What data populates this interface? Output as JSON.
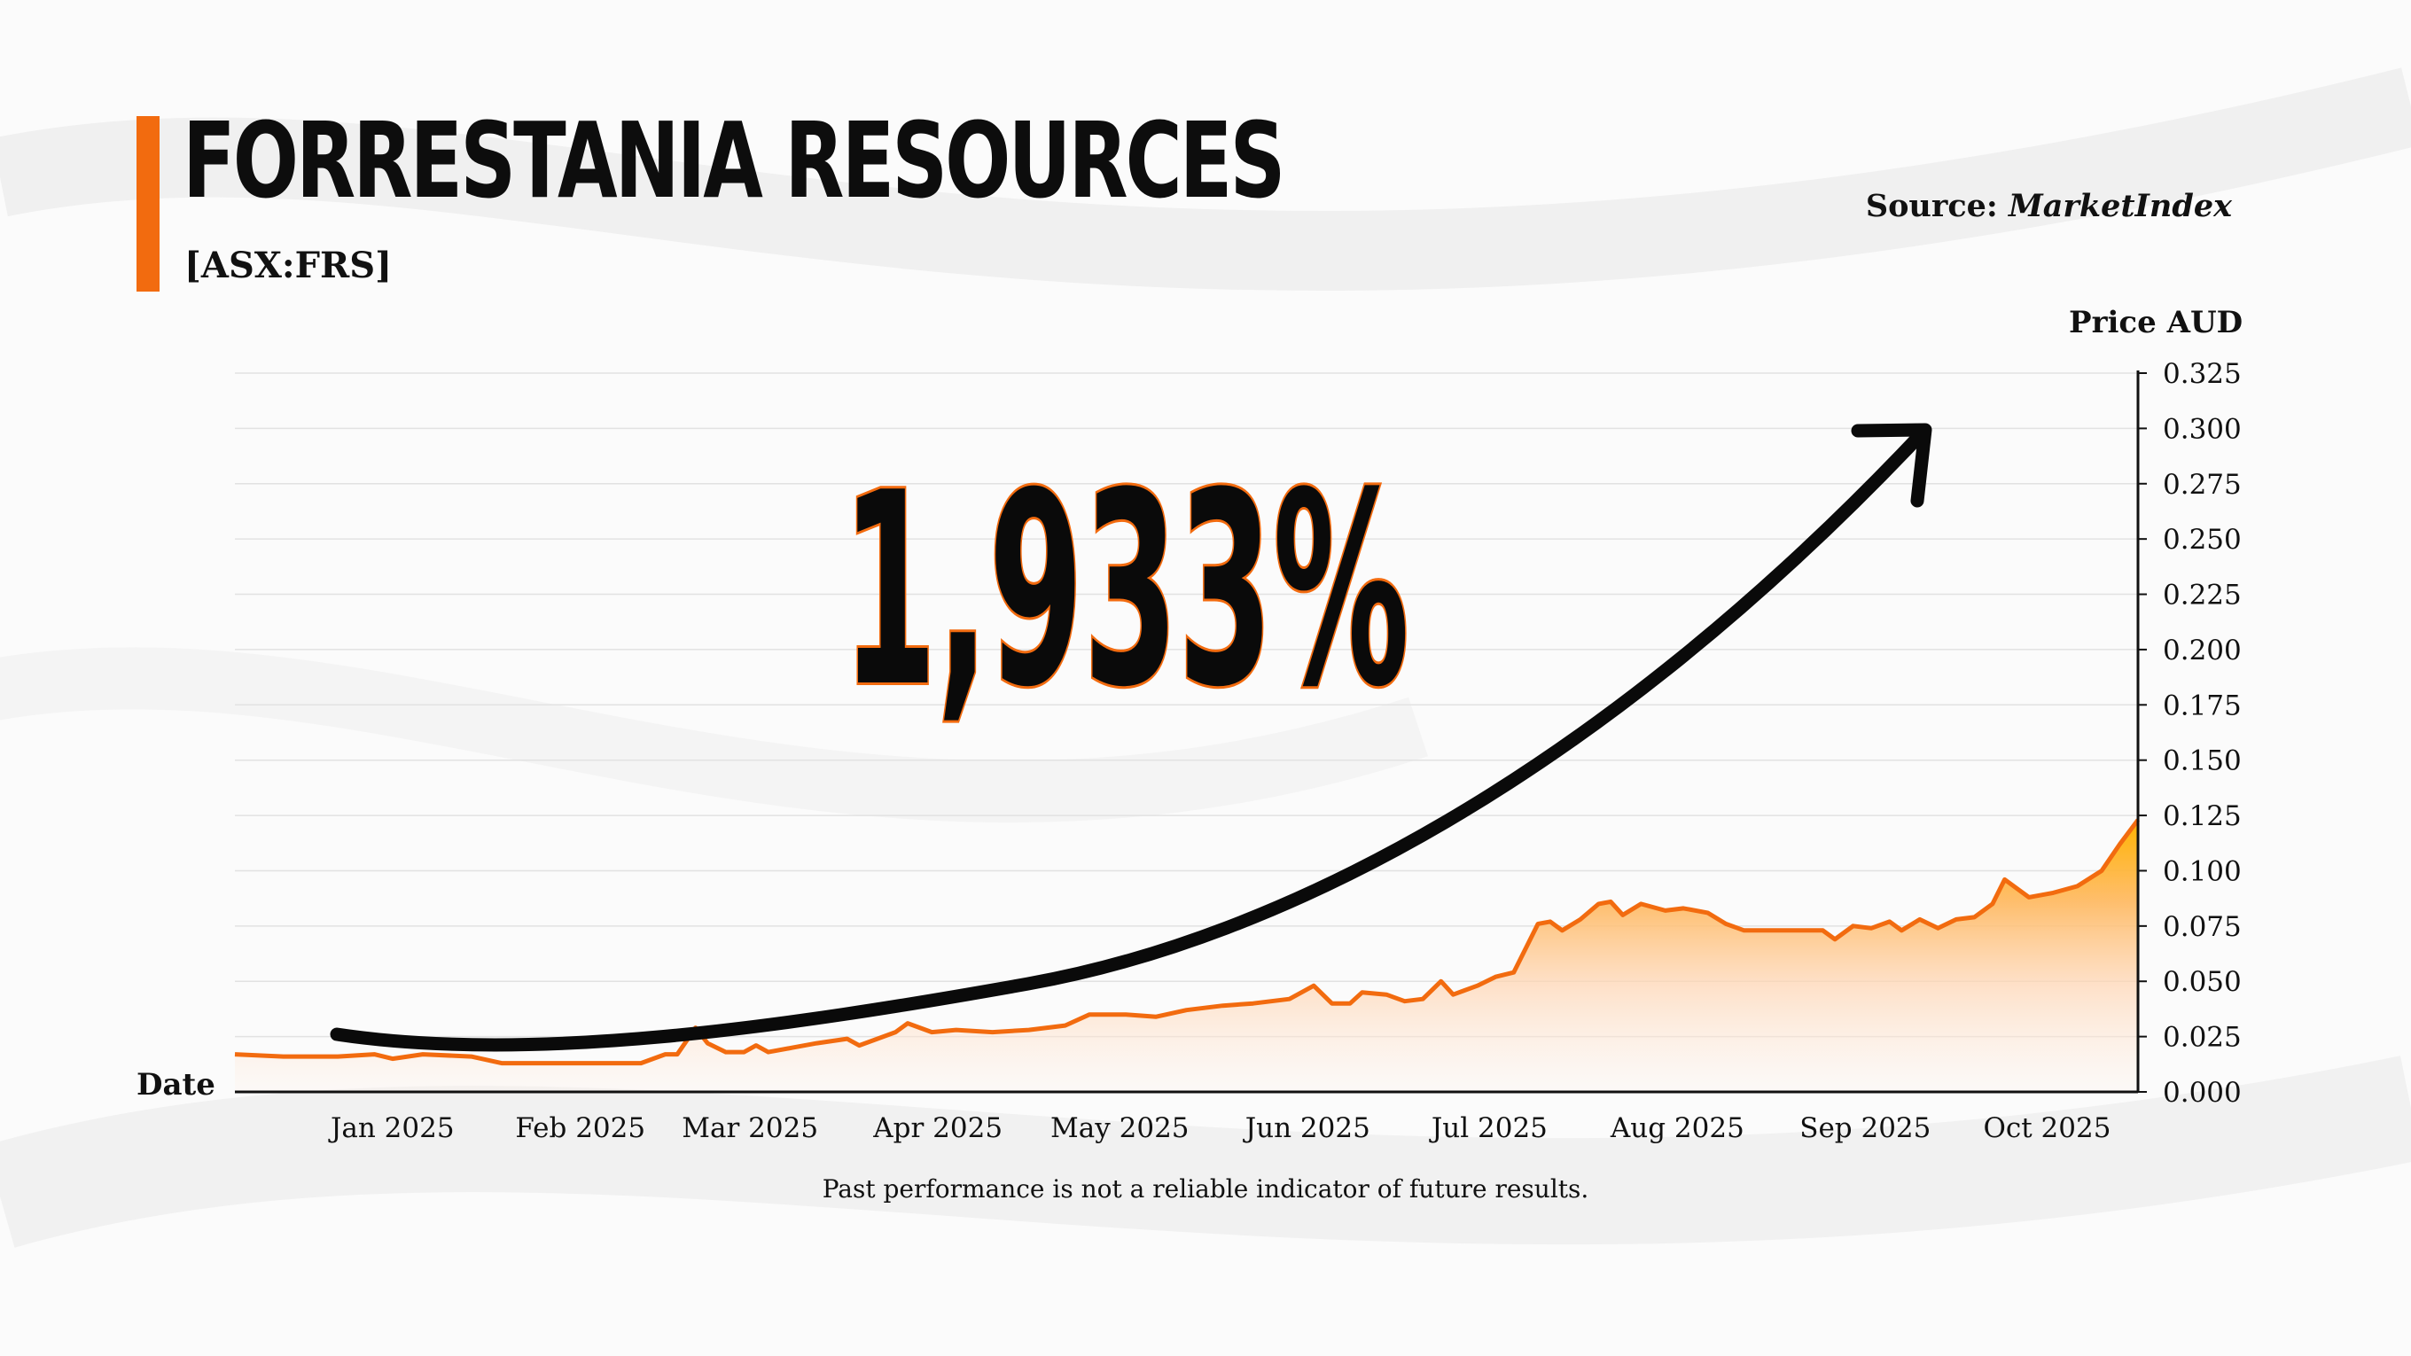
{
  "header": {
    "title": "FORRESTANIA RESOURCES",
    "ticker": "[ASX:FRS]",
    "source_prefix": "Source: ",
    "source_name": "MarketIndex"
  },
  "annotation": {
    "headline": "1,933%"
  },
  "footer": {
    "disclaimer": "Past performance is not a reliable indicator of future results."
  },
  "colors": {
    "accent": "#f26b0f",
    "fill_top": "#ffb300",
    "fill_bottom": "#ffe7d4",
    "arrow": "#0a0a0a"
  },
  "chart_data": {
    "type": "area",
    "title": "FORRESTANIA RESOURCES",
    "xlabel": "Date",
    "ylabel": "Price AUD",
    "ylim": [
      0,
      0.325
    ],
    "y_ticks": [
      "0.000",
      "0.025",
      "0.050",
      "0.075",
      "0.100",
      "0.125",
      "0.150",
      "0.175",
      "0.200",
      "0.225",
      "0.250",
      "0.275",
      "0.300",
      "0.325"
    ],
    "x_range": [
      "2024-12-20",
      "2025-10-30"
    ],
    "x_ticks": [
      {
        "label": "Jan 2025",
        "date": "2025-01-15"
      },
      {
        "label": "Feb 2025",
        "date": "2025-02-15"
      },
      {
        "label": "Mar 2025",
        "date": "2025-03-15"
      },
      {
        "label": "Apr 2025",
        "date": "2025-04-15"
      },
      {
        "label": "May 2025",
        "date": "2025-05-15"
      },
      {
        "label": "Jun 2025",
        "date": "2025-06-15"
      },
      {
        "label": "Jul 2025",
        "date": "2025-07-15"
      },
      {
        "label": "Aug 2025",
        "date": "2025-08-15"
      },
      {
        "label": "Sep 2025",
        "date": "2025-09-15"
      },
      {
        "label": "Oct 2025",
        "date": "2025-10-15"
      }
    ],
    "grid": true,
    "y_axis_side": "right",
    "series": [
      {
        "points": [
          [
            "2024-12-20",
            0.017
          ],
          [
            "2024-12-28",
            0.016
          ],
          [
            "2025-01-06",
            0.016
          ],
          [
            "2025-01-12",
            0.017
          ],
          [
            "2025-01-15",
            0.015
          ],
          [
            "2025-01-20",
            0.017
          ],
          [
            "2025-01-28",
            0.016
          ],
          [
            "2025-02-02",
            0.013
          ],
          [
            "2025-02-10",
            0.013
          ],
          [
            "2025-02-18",
            0.013
          ],
          [
            "2025-02-25",
            0.013
          ],
          [
            "2025-03-01",
            0.017
          ],
          [
            "2025-03-03",
            0.017
          ],
          [
            "2025-03-06",
            0.029
          ],
          [
            "2025-03-08",
            0.022
          ],
          [
            "2025-03-11",
            0.018
          ],
          [
            "2025-03-14",
            0.018
          ],
          [
            "2025-03-16",
            0.021
          ],
          [
            "2025-03-18",
            0.018
          ],
          [
            "2025-03-22",
            0.02
          ],
          [
            "2025-03-26",
            0.022
          ],
          [
            "2025-03-31",
            0.024
          ],
          [
            "2025-04-02",
            0.021
          ],
          [
            "2025-04-05",
            0.024
          ],
          [
            "2025-04-08",
            0.027
          ],
          [
            "2025-04-10",
            0.031
          ],
          [
            "2025-04-14",
            0.027
          ],
          [
            "2025-04-18",
            0.028
          ],
          [
            "2025-04-24",
            0.027
          ],
          [
            "2025-04-30",
            0.028
          ],
          [
            "2025-05-06",
            0.03
          ],
          [
            "2025-05-10",
            0.035
          ],
          [
            "2025-05-16",
            0.035
          ],
          [
            "2025-05-21",
            0.034
          ],
          [
            "2025-05-26",
            0.037
          ],
          [
            "2025-06-01",
            0.039
          ],
          [
            "2025-06-06",
            0.04
          ],
          [
            "2025-06-12",
            0.042
          ],
          [
            "2025-06-16",
            0.048
          ],
          [
            "2025-06-19",
            0.04
          ],
          [
            "2025-06-22",
            0.04
          ],
          [
            "2025-06-24",
            0.045
          ],
          [
            "2025-06-28",
            0.044
          ],
          [
            "2025-07-01",
            0.041
          ],
          [
            "2025-07-04",
            0.042
          ],
          [
            "2025-07-07",
            0.05
          ],
          [
            "2025-07-09",
            0.044
          ],
          [
            "2025-07-13",
            0.048
          ],
          [
            "2025-07-16",
            0.052
          ],
          [
            "2025-07-19",
            0.054
          ],
          [
            "2025-07-23",
            0.076
          ],
          [
            "2025-07-25",
            0.077
          ],
          [
            "2025-07-27",
            0.073
          ],
          [
            "2025-07-30",
            0.078
          ],
          [
            "2025-08-02",
            0.085
          ],
          [
            "2025-08-04",
            0.086
          ],
          [
            "2025-08-06",
            0.08
          ],
          [
            "2025-08-09",
            0.085
          ],
          [
            "2025-08-13",
            0.082
          ],
          [
            "2025-08-16",
            0.083
          ],
          [
            "2025-08-20",
            0.081
          ],
          [
            "2025-08-23",
            0.076
          ],
          [
            "2025-08-26",
            0.073
          ],
          [
            "2025-09-01",
            0.073
          ],
          [
            "2025-09-05",
            0.073
          ],
          [
            "2025-09-08",
            0.073
          ],
          [
            "2025-09-10",
            0.069
          ],
          [
            "2025-09-13",
            0.075
          ],
          [
            "2025-09-16",
            0.074
          ],
          [
            "2025-09-19",
            0.077
          ],
          [
            "2025-09-21",
            0.073
          ],
          [
            "2025-09-24",
            0.078
          ],
          [
            "2025-09-27",
            0.074
          ],
          [
            "2025-09-30",
            0.078
          ],
          [
            "2025-10-03",
            0.079
          ],
          [
            "2025-10-06",
            0.085
          ],
          [
            "2025-10-08",
            0.096
          ],
          [
            "2025-10-12",
            0.088
          ],
          [
            "2025-10-16",
            0.09
          ],
          [
            "2025-10-20",
            0.093
          ],
          [
            "2025-10-24",
            0.1
          ],
          [
            "2025-10-27",
            0.112
          ],
          [
            "2025-10-30",
            0.123
          ]
        ]
      }
    ]
  }
}
